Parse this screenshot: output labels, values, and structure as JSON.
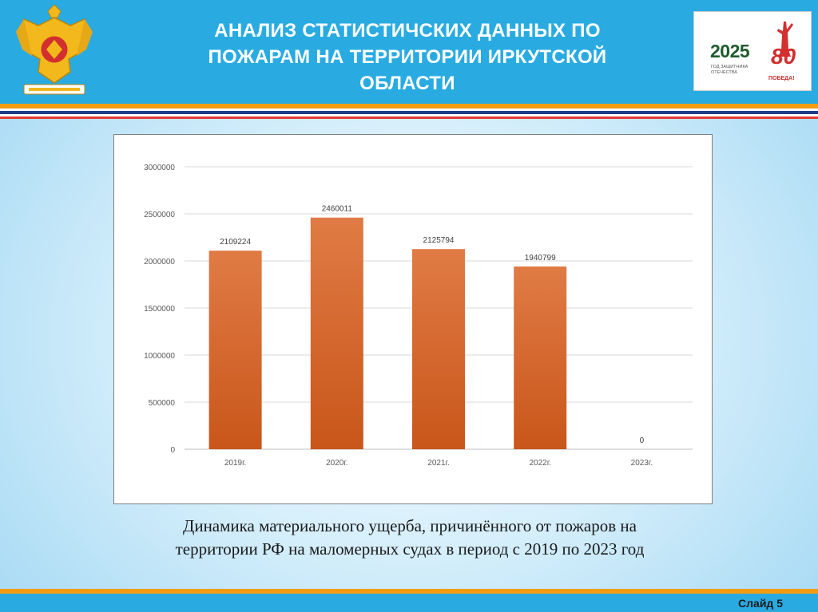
{
  "header": {
    "title_line1": "АНАЛИЗ СТАТИСТИЧСКИХ ДАННЫХ  ПО",
    "title_line2": "ПОЖАРАМ НА ТЕРРИТОРИИ  ИРКУТСКОЙ",
    "title_line3": "ОБЛАСТИ"
  },
  "logo": {
    "year": "2025",
    "subtitle": "ГОД ЗАЩИТНИКА ОТЕЧЕСТВА",
    "anniversary": "80",
    "victory": "ПОБЕДА!"
  },
  "colors": {
    "header_blue": "#29abe2",
    "bar_orange": "#d8692a",
    "accent_orange": "#f39c12"
  },
  "chart_data": {
    "type": "bar",
    "categories": [
      "2019г.",
      "2020г.",
      "2021г.",
      "2022г.",
      "2023г."
    ],
    "values": [
      2109224,
      2460011,
      2125794,
      1940799,
      0
    ],
    "ylim": [
      0,
      3000000
    ],
    "yticks": [
      0,
      500000,
      1000000,
      1500000,
      2000000,
      2500000,
      3000000
    ],
    "grid": true,
    "legend": "none",
    "data_labels": true
  },
  "caption": {
    "line1": "Динамика материального ущерба, причинённого от пожаров на",
    "line2": "территории РФ на маломерных судах в период с 2019 по 2023 год"
  },
  "footer": {
    "slide_label": "Слайд 5"
  }
}
